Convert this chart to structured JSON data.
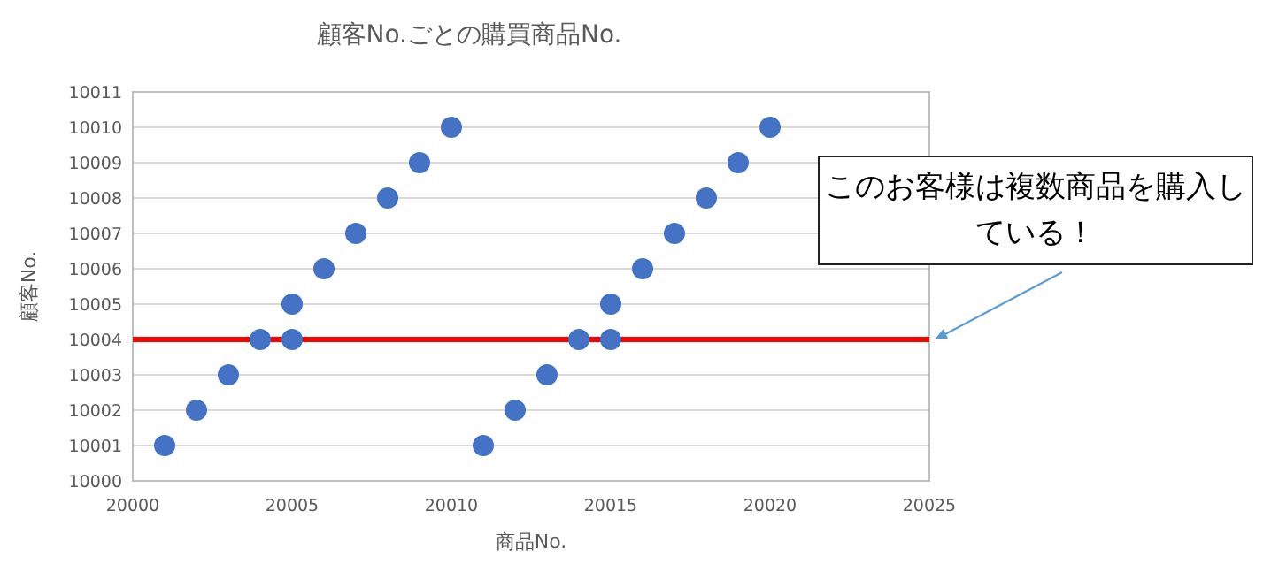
{
  "chart_data": {
    "type": "scatter",
    "title": "顧客No.ごとの購買商品No.",
    "xlabel": "商品No.",
    "ylabel": "顧客No.",
    "series": [
      {
        "color": "#4472c4",
        "x": [
          20001,
          20002,
          20003,
          20004,
          20005,
          20005,
          20006,
          20007,
          20008,
          20009,
          20010,
          20011,
          20012,
          20013,
          20014,
          20015,
          20015,
          20016,
          20017,
          20018,
          20019,
          20020
        ],
        "values": [
          10001,
          10002,
          10003,
          10004,
          10004,
          10005,
          10006,
          10007,
          10008,
          10009,
          10010,
          10001,
          10002,
          10003,
          10004,
          10004,
          10005,
          10006,
          10007,
          10008,
          10009,
          10010
        ]
      }
    ],
    "xlim": [
      20000,
      20025
    ],
    "xticks": [
      20000,
      20005,
      20010,
      20015,
      20020,
      20025
    ],
    "ylim": [
      10000,
      10011
    ],
    "yticks": [
      10000,
      10001,
      10002,
      10003,
      10004,
      10005,
      10006,
      10007,
      10008,
      10009,
      10010,
      10011
    ],
    "grid": "y",
    "marker": "circle",
    "ref_lines": [
      {
        "axis": "y",
        "value": 10004,
        "color": "#ff0000"
      }
    ],
    "annotations": [
      {
        "text": "このお客様は複数商品を購入している！",
        "x": 20025,
        "y": 10004
      }
    ]
  }
}
